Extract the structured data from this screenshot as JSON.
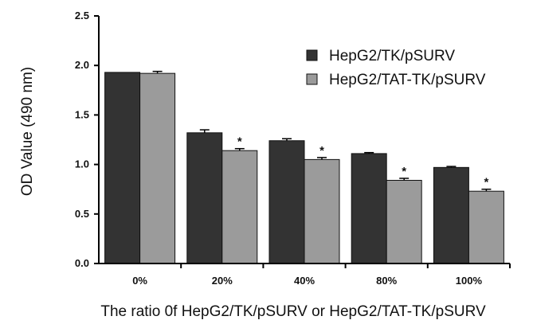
{
  "chart_data": {
    "type": "bar",
    "xlabel": "The ratio 0f HepG2/TK/pSURV or HepG2/TAT-TK/pSURV",
    "ylabel": "OD Value (490 nm)",
    "ylim": [
      0.0,
      2.5
    ],
    "yticks": [
      "0.0",
      "0.5",
      "1.0",
      "1.5",
      "2.0",
      "2.5"
    ],
    "categories": [
      "0%",
      "20%",
      "40%",
      "80%",
      "100%"
    ],
    "series": [
      {
        "name": "HepG2/TK/pSURV",
        "color": "#333333",
        "values": [
          1.93,
          1.32,
          1.24,
          1.11,
          0.97
        ],
        "errors": [
          0.0,
          0.03,
          0.02,
          0.01,
          0.01
        ],
        "significance": [
          "",
          "",
          "",
          "",
          ""
        ]
      },
      {
        "name": "HepG2/TAT-TK/pSURV",
        "color": "#9b9b9b",
        "values": [
          1.92,
          1.14,
          1.05,
          0.84,
          0.73
        ],
        "errors": [
          0.02,
          0.02,
          0.02,
          0.02,
          0.02
        ],
        "significance": [
          "",
          "*",
          "*",
          "*",
          "*"
        ]
      }
    ],
    "legend_position": "top-right",
    "grid": false
  }
}
